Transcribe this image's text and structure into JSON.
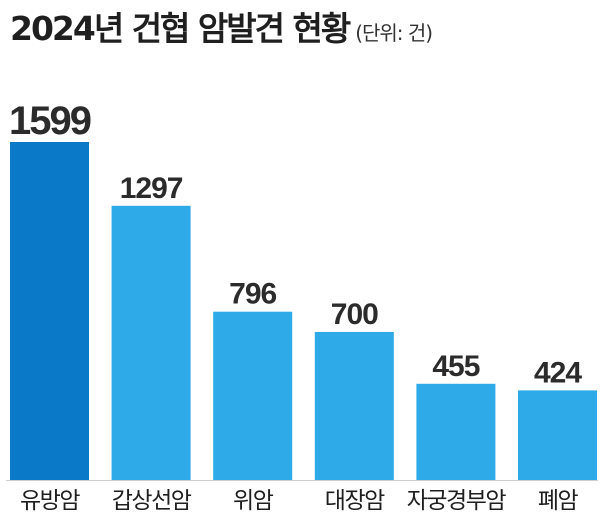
{
  "chart_data": {
    "type": "bar",
    "title": "2024년 건협 암발견 현황",
    "unit_note": "(단위: 건)",
    "categories": [
      "유방암",
      "갑상선암",
      "위암",
      "대장암",
      "자궁경부암",
      "폐암"
    ],
    "values": [
      1599,
      1297,
      796,
      700,
      455,
      424
    ],
    "ylim": [
      0,
      1599
    ],
    "grid": false,
    "legend": "none",
    "colors": {
      "highlight": "#0a79c7",
      "bar": "#2eaae8",
      "baseline": "#cfcfcf",
      "text": "#222222"
    }
  }
}
